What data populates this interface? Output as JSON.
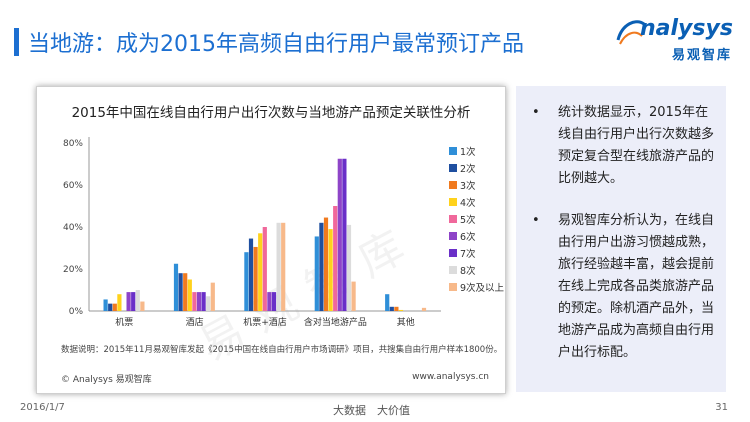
{
  "header": {
    "title": "当地游：成为2015年高频自由行用户最常预订产品",
    "logo_text": "nalysys",
    "logo_cn": "易观智库"
  },
  "chart_data": {
    "type": "bar",
    "title": "2015年中国在线自由行用户出行次数与当地游产品预定关联性分析",
    "categories": [
      "机票",
      "酒店",
      "机票+酒店",
      "含对当地游产品",
      "其他"
    ],
    "ylim": [
      0,
      80
    ],
    "yticks": [
      "0%",
      "20%",
      "40%",
      "60%",
      "80%"
    ],
    "grid": false,
    "legend_position": "right",
    "series": [
      {
        "name": "1次",
        "color": "#2f8fd8",
        "values": [
          5.5,
          22.5,
          28,
          35.5,
          8
        ]
      },
      {
        "name": "2次",
        "color": "#1f4fa0",
        "values": [
          3.5,
          18,
          34.5,
          42,
          2
        ]
      },
      {
        "name": "3次",
        "color": "#f07a1f",
        "values": [
          3.5,
          18,
          30.5,
          44.5,
          2
        ]
      },
      {
        "name": "4次",
        "color": "#ffd21c",
        "values": [
          8,
          15,
          37,
          39,
          0.5
        ]
      },
      {
        "name": "5次",
        "color": "#f0689b",
        "values": [
          0,
          9,
          40,
          50,
          0
        ]
      },
      {
        "name": "6次",
        "color": "#8e44c8",
        "values": [
          9,
          9,
          9,
          72.5,
          0
        ]
      },
      {
        "name": "7次",
        "color": "#6a2fc8",
        "values": [
          9,
          9,
          9,
          72.5,
          0
        ]
      },
      {
        "name": "8次",
        "color": "#dcdcdc",
        "values": [
          10,
          7,
          42,
          41,
          0
        ]
      },
      {
        "name": "9次及以上",
        "color": "#f7b98a",
        "values": [
          4.5,
          13.5,
          42,
          14,
          1.5
        ]
      }
    ]
  },
  "watermark": "易观智库",
  "note": "数据说明：2015年11月易观智库发起《2015中国在线自由行用户市场调研》项目，共搜集自由行用户样本1800份。",
  "chart_foot_left": "© Analysys 易观智库",
  "chart_foot_right": "www.analysys.cn",
  "side_panel": {
    "bullets": [
      {
        "dot": "•",
        "text": "统计数据显示，2015年在线自由行用户出行次数越多预定复合型在线旅游产品的比例越大。"
      },
      {
        "dot": "•",
        "text": "易观智库分析认为，在线自由行用户出游习惯越成熟，旅行经验越丰富，越会提前在线上完成各品类旅游产品的预定。除机酒产品外，当地游产品成为高频自由行用户出行标配。"
      }
    ]
  },
  "footer": {
    "date": "2016/1/7",
    "center": "大数据　大价值",
    "page": "31"
  }
}
